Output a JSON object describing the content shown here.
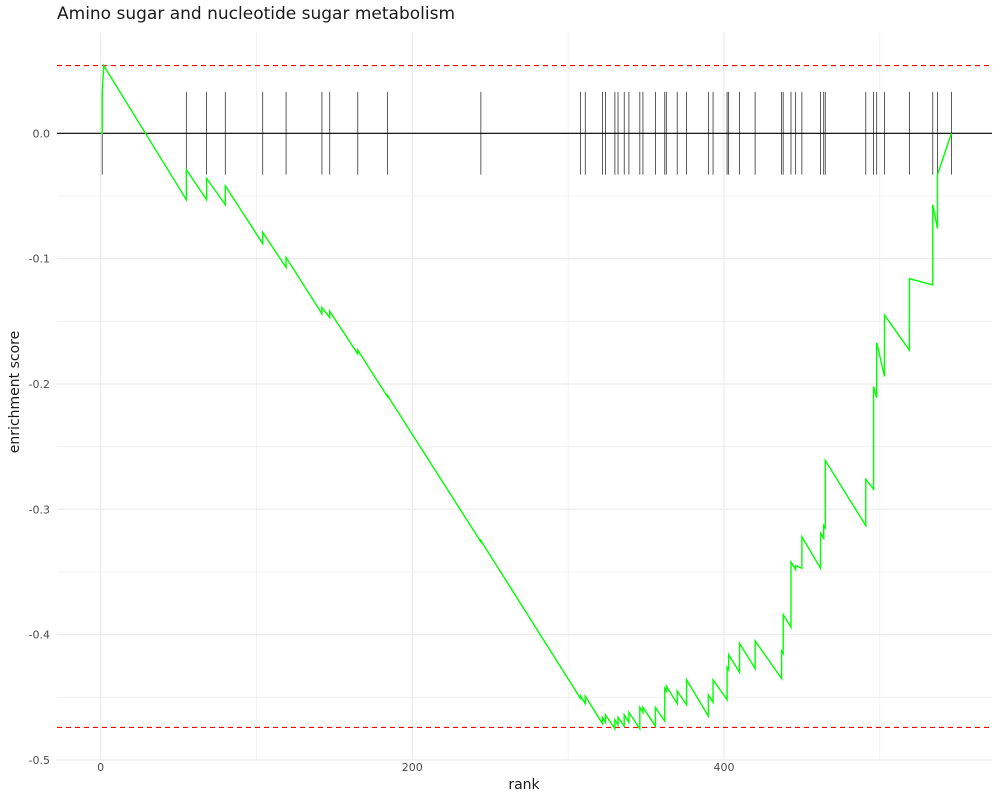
{
  "chart_data": {
    "type": "line",
    "title": "Amino sugar and nucleotide sugar metabolism",
    "xlabel": "rank",
    "ylabel": "enrichment score",
    "xlim": [
      -28,
      572
    ],
    "ylim": [
      -0.5,
      0.08
    ],
    "x_ticks": [
      0,
      200,
      400
    ],
    "x_tick_labels": [
      "0",
      "200",
      "400"
    ],
    "y_ticks": [
      0.0,
      -0.1,
      -0.2,
      -0.3,
      -0.4,
      -0.5
    ],
    "y_tick_labels": [
      "0.0",
      "-0.1",
      "-0.2",
      "-0.3",
      "-0.4",
      "-0.5"
    ],
    "grid": true,
    "reference_lines": {
      "max_es": 0.054,
      "min_es": -0.474,
      "zero": 0.0
    },
    "colors": {
      "curve": "#00ff00",
      "dashed": "#ff0000",
      "hits": "#333333",
      "zero_line": "#000000",
      "grid": "#ebebeb"
    },
    "hit_ranks": [
      1,
      55,
      68,
      80,
      104,
      119,
      142,
      147,
      165,
      184,
      244,
      308,
      311,
      322,
      324,
      330,
      332,
      336,
      339,
      346,
      348,
      356,
      362,
      363,
      370,
      376,
      390,
      393,
      402,
      403,
      410,
      420,
      437,
      438,
      443,
      446,
      450,
      462,
      464,
      465,
      491,
      496,
      498,
      503,
      519,
      534,
      537,
      546
    ],
    "series": [
      {
        "x": [
          0,
          1,
          1,
          2,
          55,
          55,
          68,
          68,
          80,
          80,
          104,
          104,
          119,
          119,
          142,
          142,
          147,
          147,
          165,
          165,
          184,
          184,
          244,
          244,
          308,
          308,
          311,
          311,
          322,
          322,
          324,
          324,
          330,
          330,
          332,
          332,
          336,
          336,
          339,
          339,
          346,
          346,
          348,
          348,
          356,
          356,
          362,
          362,
          363,
          363,
          370,
          370,
          376,
          376,
          390,
          390,
          393,
          393,
          402,
          402,
          403,
          403,
          410,
          410,
          420,
          420,
          437,
          437,
          438,
          438,
          443,
          443,
          446,
          446,
          450,
          450,
          462,
          462,
          464,
          464,
          465,
          465,
          491,
          491,
          496,
          496,
          498,
          498,
          503,
          503,
          519,
          519,
          534,
          534,
          537,
          537,
          546,
          546
        ],
        "y": [
          0,
          0,
          0.033,
          0.054,
          -0.053,
          -0.029,
          -0.053,
          -0.036,
          -0.057,
          -0.042,
          -0.088,
          -0.079,
          -0.107,
          -0.099,
          -0.144,
          -0.139,
          -0.147,
          -0.142,
          -0.176,
          -0.173,
          -0.21,
          -0.209,
          -0.326,
          -0.325,
          -0.451,
          -0.449,
          -0.455,
          -0.449,
          -0.471,
          -0.466,
          -0.47,
          -0.464,
          -0.475,
          -0.468,
          -0.472,
          -0.466,
          -0.473,
          -0.464,
          -0.47,
          -0.462,
          -0.475,
          -0.458,
          -0.462,
          -0.458,
          -0.473,
          -0.458,
          -0.469,
          -0.443,
          -0.445,
          -0.441,
          -0.455,
          -0.445,
          -0.456,
          -0.436,
          -0.465,
          -0.448,
          -0.454,
          -0.436,
          -0.452,
          -0.426,
          -0.428,
          -0.416,
          -0.43,
          -0.407,
          -0.427,
          -0.405,
          -0.435,
          -0.413,
          -0.415,
          -0.384,
          -0.394,
          -0.342,
          -0.348,
          -0.345,
          -0.347,
          -0.322,
          -0.347,
          -0.319,
          -0.323,
          -0.313,
          -0.315,
          -0.261,
          -0.313,
          -0.276,
          -0.284,
          -0.202,
          -0.211,
          -0.167,
          -0.194,
          -0.145,
          -0.173,
          -0.116,
          -0.121,
          -0.057,
          -0.076,
          -0.033,
          0,
          0
        ]
      }
    ]
  }
}
